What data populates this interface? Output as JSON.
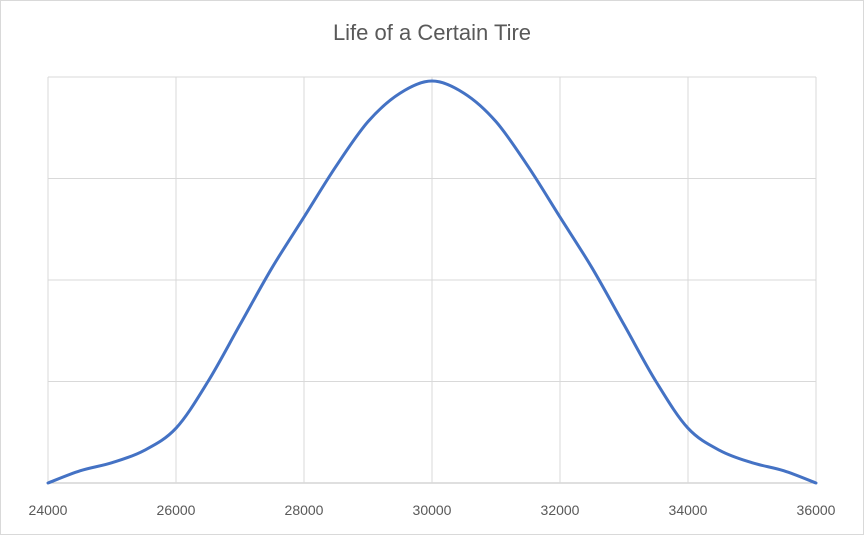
{
  "chart_data": {
    "type": "line",
    "title": "Life of a Certain Tire",
    "xlabel": "",
    "ylabel": "",
    "x_ticks": [
      "24000",
      "26000",
      "28000",
      "30000",
      "32000",
      "34000",
      "36000"
    ],
    "xlim": [
      24000,
      36000
    ],
    "ylim": [
      0,
      1
    ],
    "y_gridlines": [
      0,
      0.25,
      0.5,
      0.75,
      1.0
    ],
    "grid": true,
    "legend": "none",
    "series": [
      {
        "color": "#4472c4",
        "x": [
          24000,
          24500,
          25000,
          25500,
          26000,
          26500,
          27000,
          27500,
          28000,
          28500,
          29000,
          29500,
          30000,
          30500,
          31000,
          31500,
          32000,
          32500,
          33000,
          33500,
          34000,
          34500,
          35000,
          35500,
          36000
        ],
        "y": [
          0.0,
          0.03,
          0.05,
          0.08,
          0.135,
          0.25,
          0.39,
          0.53,
          0.655,
          0.78,
          0.89,
          0.96,
          0.99,
          0.96,
          0.89,
          0.78,
          0.655,
          0.53,
          0.39,
          0.25,
          0.135,
          0.08,
          0.05,
          0.03,
          0.0
        ]
      }
    ]
  }
}
